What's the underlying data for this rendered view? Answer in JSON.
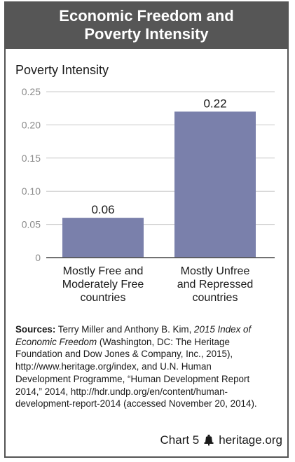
{
  "header": {
    "title_line1": "Economic Freedom and",
    "title_line2": "Poverty Intensity"
  },
  "chart_data": {
    "type": "bar",
    "title": "Economic Freedom and Poverty Intensity",
    "ylabel": "Poverty Intensity",
    "xlabel": "",
    "categories": [
      [
        "Mostly Free and",
        "Moderately Free",
        "countries"
      ],
      [
        "Mostly Unfree",
        "and Repressed",
        "countries"
      ]
    ],
    "values": [
      0.06,
      0.22
    ],
    "value_labels": [
      "0.06",
      "0.22"
    ],
    "ylim": [
      0,
      0.25
    ],
    "yticks": [
      0,
      0.05,
      0.1,
      0.15,
      0.2,
      0.25
    ],
    "ytick_labels": [
      "0",
      "0.05",
      "0.10",
      "0.15",
      "0.20",
      "0.25"
    ],
    "bar_color": "#7a80ab",
    "grid": true,
    "grid_color": "#c8c8c8"
  },
  "sources": {
    "label": "Sources:",
    "text_1": " Terry Miller and Anthony B. Kim, ",
    "italic_title": "2015 Index of Economic Freedom",
    "text_2": " (Washington, DC: The Heritage Foundation and Dow Jones & Company, Inc., 2015), http://www.heritage.org/index, and U.N. Human Development Programme, “Human Development Report 2014,” 2014, http://hdr.undp.org/en/content/human-development-report-2014 (accessed November 20, 2014)."
  },
  "footer": {
    "chart_number": "Chart 5",
    "site": "heritage.org",
    "logo_icon": "liberty-bell-icon"
  },
  "colors": {
    "banner_bg": "#565656",
    "border": "#555555"
  }
}
